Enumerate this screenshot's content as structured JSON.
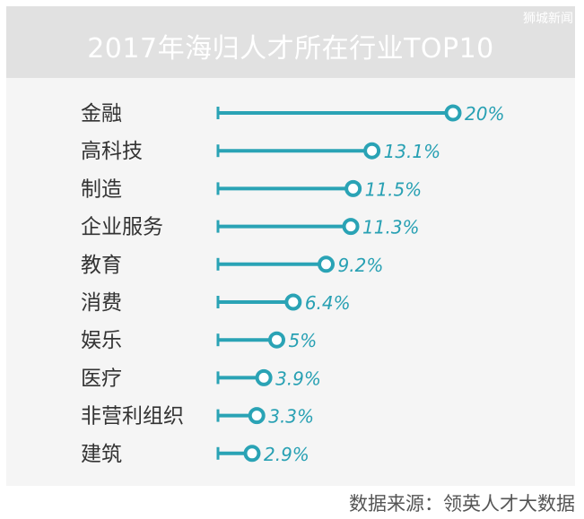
{
  "chart_data": {
    "type": "bar",
    "title": "2017年海归人才所在行业TOP10",
    "categories": [
      "金融",
      "高科技",
      "制造",
      "企业服务",
      "教育",
      "消费",
      "娱乐",
      "医疗",
      "非营利组织",
      "建筑"
    ],
    "values": [
      20,
      13.1,
      11.5,
      11.3,
      9.2,
      6.4,
      5,
      3.9,
      3.3,
      2.9
    ],
    "value_labels": [
      "20%",
      "13.1%",
      "11.5%",
      "11.3%",
      "9.2%",
      "6.4%",
      "5%",
      "3.9%",
      "3.3%",
      "2.9%"
    ],
    "unit": "%",
    "xlabel": "",
    "ylabel": "",
    "xlim": [
      0,
      20
    ],
    "grid": false,
    "legend": "none",
    "accent_color": "#2aa3b5",
    "label_color": "#27a0b3"
  },
  "watermark": "狮城新闻",
  "source": "数据来源：领英人才大数据"
}
